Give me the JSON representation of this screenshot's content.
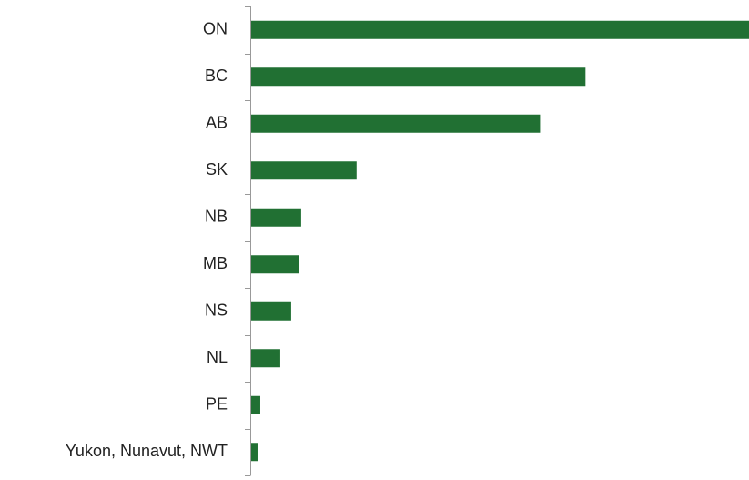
{
  "chart_data": {
    "type": "bar",
    "orientation": "horizontal",
    "categories": [
      "ON",
      "BC",
      "AB",
      "SK",
      "NB",
      "MB",
      "NS",
      "NL",
      "PE",
      "Yukon, Nunavut, NWT"
    ],
    "values": [
      548,
      368,
      318,
      116,
      55,
      53,
      44,
      32,
      10,
      7
    ],
    "color": "#217033"
  }
}
